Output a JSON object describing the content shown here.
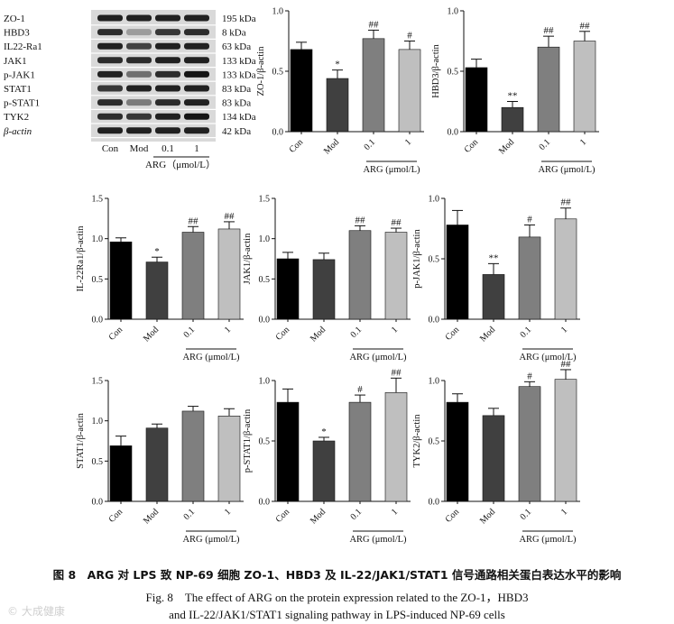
{
  "blot": {
    "rows": [
      {
        "label": "ZO-1",
        "size": "195 kDa",
        "intensity": [
          0.9,
          0.9,
          0.9,
          0.9
        ]
      },
      {
        "label": "HBD3",
        "size": "8 kDa",
        "intensity": [
          0.85,
          0.35,
          0.8,
          0.85
        ]
      },
      {
        "label": "IL22-Ra1",
        "size": "63 kDa",
        "intensity": [
          0.9,
          0.75,
          0.9,
          0.9
        ]
      },
      {
        "label": "JAK1",
        "size": "133 kDa",
        "intensity": [
          0.85,
          0.85,
          0.9,
          0.9
        ]
      },
      {
        "label": "p-JAK1",
        "size": "133 kDa",
        "intensity": [
          0.9,
          0.55,
          0.85,
          0.95
        ]
      },
      {
        "label": "STAT1",
        "size": "83 kDa",
        "intensity": [
          0.8,
          0.9,
          0.9,
          0.9
        ]
      },
      {
        "label": "p-STAT1",
        "size": "83 kDa",
        "intensity": [
          0.85,
          0.5,
          0.85,
          0.9
        ]
      },
      {
        "label": "TYK2",
        "size": "134 kDa",
        "intensity": [
          0.85,
          0.8,
          0.9,
          0.95
        ]
      },
      {
        "label": "β-actin",
        "size": "42 kDa",
        "intensity": [
          0.9,
          0.9,
          0.9,
          0.9
        ]
      }
    ],
    "lanes": [
      "Con",
      "Mod",
      "0.1",
      "1"
    ],
    "group_label": "ARG（μmol/L）"
  },
  "chart_data": [
    {
      "type": "bar",
      "ylabel": "ZO-1/β-actin",
      "categories": [
        "Con",
        "Mod",
        "0.1",
        "1"
      ],
      "values": [
        0.68,
        0.44,
        0.77,
        0.68
      ],
      "errors": [
        0.06,
        0.07,
        0.07,
        0.07
      ],
      "sig": [
        "",
        "*",
        "##",
        "#"
      ],
      "ylim": [
        0.0,
        1.0
      ],
      "yticks": [
        "0.0",
        "0.5",
        "1.0"
      ],
      "group_label": "ARG (μmol/L)"
    },
    {
      "type": "bar",
      "ylabel": "HBD3/β-actin",
      "categories": [
        "Con",
        "Mod",
        "0.1",
        "1"
      ],
      "values": [
        0.53,
        0.2,
        0.7,
        0.75
      ],
      "errors": [
        0.07,
        0.05,
        0.09,
        0.08
      ],
      "sig": [
        "",
        "**",
        "##",
        "##"
      ],
      "ylim": [
        0.0,
        1.0
      ],
      "yticks": [
        "0.0",
        "0.5",
        "1.0"
      ],
      "group_label": "ARG (μmol/L)"
    },
    {
      "type": "bar",
      "ylabel": "IL-22Ra1/β-actin",
      "categories": [
        "Con",
        "Mod",
        "0.1",
        "1"
      ],
      "values": [
        0.96,
        0.71,
        1.08,
        1.12
      ],
      "errors": [
        0.05,
        0.06,
        0.07,
        0.09
      ],
      "sig": [
        "",
        "*",
        "##",
        "##"
      ],
      "ylim": [
        0.0,
        1.5
      ],
      "yticks": [
        "0.0",
        "0.5",
        "1.0",
        "1.5"
      ],
      "group_label": "ARG (μmol/L)"
    },
    {
      "type": "bar",
      "ylabel": "JAK1/β-actin",
      "categories": [
        "Con",
        "Mod",
        "0.1",
        "1"
      ],
      "values": [
        0.75,
        0.74,
        1.1,
        1.08
      ],
      "errors": [
        0.08,
        0.08,
        0.06,
        0.05
      ],
      "sig": [
        "",
        "",
        "##",
        "##"
      ],
      "ylim": [
        0.0,
        1.5
      ],
      "yticks": [
        "0.0",
        "0.5",
        "1.0",
        "1.5"
      ],
      "group_label": "ARG (μmol/L)"
    },
    {
      "type": "bar",
      "ylabel": "p-JAK1/β-actin",
      "categories": [
        "Con",
        "Mod",
        "0.1",
        "1"
      ],
      "values": [
        0.78,
        0.37,
        0.68,
        0.83
      ],
      "errors": [
        0.12,
        0.09,
        0.1,
        0.09
      ],
      "sig": [
        "",
        "**",
        "#",
        "##"
      ],
      "ylim": [
        0.0,
        1.0
      ],
      "yticks": [
        "0.0",
        "0.5",
        "1.0"
      ],
      "group_label": "ARG (μmol/L)"
    },
    {
      "type": "bar",
      "ylabel": "STAT1/β-actin",
      "categories": [
        "Con",
        "Mod",
        "0.1",
        "1"
      ],
      "values": [
        0.69,
        0.91,
        1.12,
        1.06
      ],
      "errors": [
        0.12,
        0.05,
        0.06,
        0.09
      ],
      "sig": [
        "",
        "",
        "",
        ""
      ],
      "ylim": [
        0.0,
        1.5
      ],
      "yticks": [
        "0.0",
        "0.5",
        "1.0",
        "1.5"
      ],
      "group_label": "ARG (μmol/L)"
    },
    {
      "type": "bar",
      "ylabel": "p-STAT1/β-actin",
      "categories": [
        "Con",
        "Mod",
        "0.1",
        "1"
      ],
      "values": [
        0.82,
        0.5,
        0.82,
        0.9
      ],
      "errors": [
        0.11,
        0.03,
        0.06,
        0.12
      ],
      "sig": [
        "",
        "*",
        "#",
        "##"
      ],
      "ylim": [
        0.0,
        1.0
      ],
      "yticks": [
        "0.0",
        "0.5",
        "1.0"
      ],
      "group_label": "ARG (μmol/L)"
    },
    {
      "type": "bar",
      "ylabel": "TYK2/β-actin",
      "categories": [
        "Con",
        "Mod",
        "0.1",
        "1"
      ],
      "values": [
        0.82,
        0.71,
        0.95,
        1.01
      ],
      "errors": [
        0.07,
        0.06,
        0.04,
        0.08
      ],
      "sig": [
        "",
        "",
        "#",
        "##"
      ],
      "ylim": [
        0.0,
        1.0
      ],
      "yticks": [
        "0.0",
        "0.5",
        "1.0"
      ],
      "group_label": "ARG (μmol/L)"
    }
  ],
  "colors": {
    "bars": [
      "#000000",
      "#404040",
      "#7f7f7f",
      "#bfbfbf"
    ]
  },
  "caption": {
    "cn": "图 8　ARG 对 LPS 致 NP-69 细胞 ZO-1、HBD3 及 IL-22/JAK1/STAT1 信号通路相关蛋白表达水平的影响",
    "en_line1": "Fig. 8　The effect of ARG on the protein expression related to the ZO-1，HBD3",
    "en_line2": "and IL-22/JAK1/STAT1 signaling pathway in LPS-induced NP-69 cells"
  },
  "watermark": "© 大成健康"
}
